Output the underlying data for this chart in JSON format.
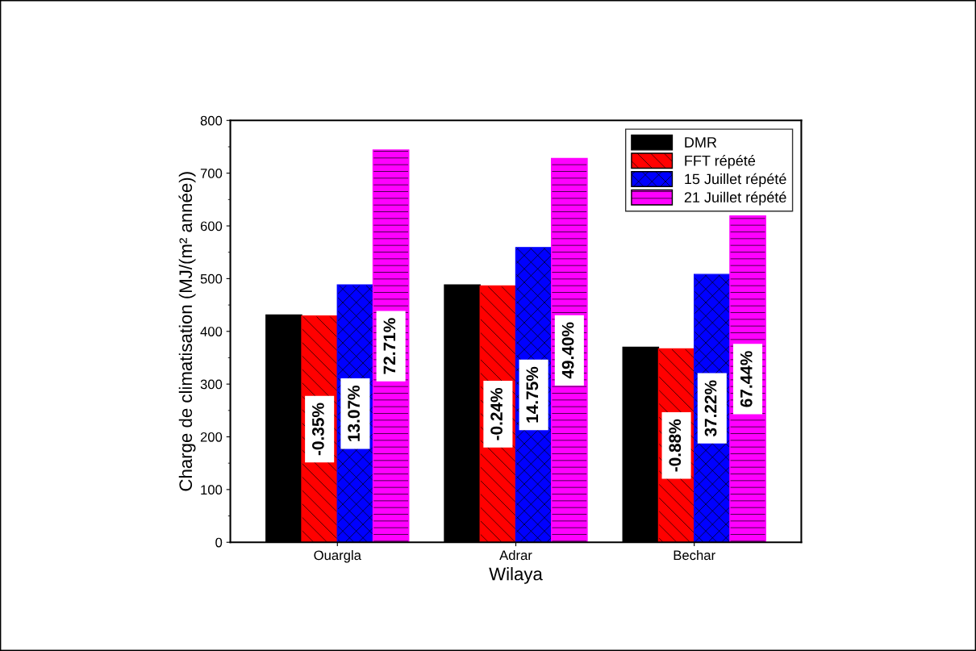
{
  "chart_data": {
    "type": "bar",
    "xlabel": "Wilaya",
    "ylabel": "Charge de climatisation (MJ/(m² année))",
    "categories": [
      "Ouargla",
      "Adrar",
      "Bechar"
    ],
    "series": [
      {
        "name": "DMR",
        "color": "#000000",
        "values": [
          431,
          488,
          370
        ]
      },
      {
        "name": "FFT répété",
        "color": "#ff0000",
        "values": [
          429,
          486,
          367
        ]
      },
      {
        "name": "15 Juillet répété",
        "color": "#0000ff",
        "values": [
          488,
          559,
          508
        ]
      },
      {
        "name": "21 Juillet répété",
        "color": "#ff00ff",
        "values": [
          744,
          728,
          619
        ]
      }
    ],
    "annotations": [
      "-0.35%",
      "13.07%",
      "72.71%",
      "-0.24%",
      "14.75%",
      "49.40%",
      "-0.88%",
      "37.22%",
      "67.44%"
    ],
    "ylim": [
      0,
      800
    ],
    "yticks": [
      0,
      100,
      200,
      300,
      400,
      500,
      600,
      700,
      800
    ],
    "grid": false,
    "legend": "top right"
  }
}
